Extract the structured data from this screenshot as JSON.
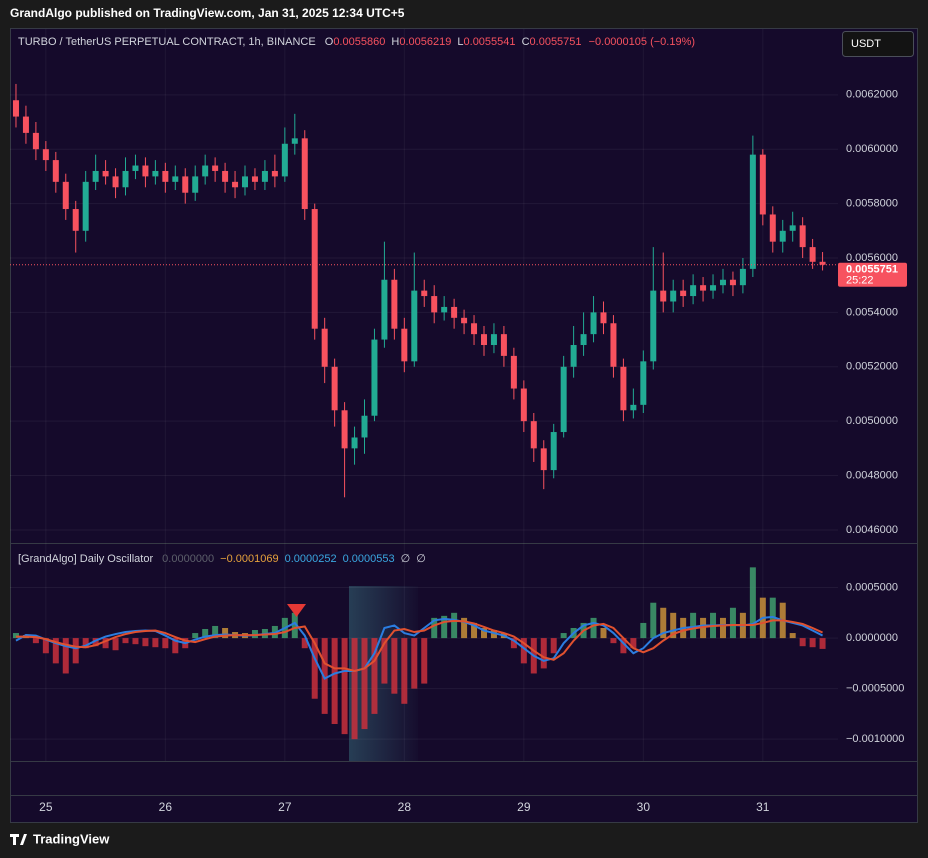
{
  "page": {
    "publisher_line": "GrandAlgo published on TradingView.com, Jan 31, 2025 12:34 UTC+5",
    "currency_button": "USDT",
    "brand": "TradingView"
  },
  "chart_data": [
    {
      "type": "candlestick",
      "title": "TURBO / TetherUS PERPETUAL CONTRACT, 1h, BINANCE",
      "ohlc_letters": [
        "O",
        "H",
        "L",
        "C"
      ],
      "ohlc_printed": [
        "0.0055860",
        "0.0056219",
        "0.0055541",
        "0.0055751"
      ],
      "change": "−0.0000105 (−0.19%)",
      "last_price_label": "0.0055751",
      "countdown": "25:22",
      "up_color": "#22ab94",
      "down_color": "#f7525f",
      "grid": true,
      "xlim": [
        -7.2,
        159.1
      ],
      "xticks": [
        {
          "value": 0,
          "label": "25"
        },
        {
          "value": 24,
          "label": "26"
        },
        {
          "value": 48,
          "label": "27"
        },
        {
          "value": 72,
          "label": "28"
        },
        {
          "value": 96,
          "label": "29"
        },
        {
          "value": 120,
          "label": "30"
        },
        {
          "value": 144,
          "label": "31"
        }
      ],
      "ylim": [
        0.004552,
        0.006442
      ],
      "yticks": [
        {
          "value": 0.0046,
          "label": "0.0046000"
        },
        {
          "value": 0.0048,
          "label": "0.0048000"
        },
        {
          "value": 0.005,
          "label": "0.0050000"
        },
        {
          "value": 0.0052,
          "label": "0.0052000"
        },
        {
          "value": 0.0054,
          "label": "0.0054000"
        },
        {
          "value": 0.0056,
          "label": "0.0056000"
        },
        {
          "value": 0.0058,
          "label": "0.0058000"
        },
        {
          "value": 0.006,
          "label": "0.0060000"
        },
        {
          "value": 0.0062,
          "label": "0.0062000"
        }
      ],
      "x": [
        -6,
        -4,
        -2,
        0,
        2,
        4,
        6,
        8,
        10,
        12,
        14,
        16,
        18,
        20,
        22,
        24,
        26,
        28,
        30,
        32,
        34,
        36,
        38,
        40,
        42,
        44,
        46,
        48,
        50,
        52,
        54,
        56,
        58,
        60,
        62,
        64,
        66,
        68,
        70,
        72,
        74,
        76,
        78,
        80,
        82,
        84,
        86,
        88,
        90,
        92,
        94,
        96,
        98,
        100,
        102,
        104,
        106,
        108,
        110,
        112,
        114,
        116,
        118,
        120,
        122,
        124,
        126,
        128,
        130,
        132,
        134,
        136,
        138,
        140,
        142,
        144,
        146,
        148,
        150,
        152,
        154,
        156
      ],
      "open": [
        0.00618,
        0.00612,
        0.00606,
        0.006,
        0.00596,
        0.00588,
        0.00578,
        0.0057,
        0.00588,
        0.00592,
        0.0059,
        0.00586,
        0.00592,
        0.00594,
        0.0059,
        0.00592,
        0.00588,
        0.0059,
        0.00584,
        0.0059,
        0.00594,
        0.00592,
        0.00588,
        0.00586,
        0.0059,
        0.00588,
        0.00592,
        0.0059,
        0.00602,
        0.00604,
        0.00578,
        0.00534,
        0.0052,
        0.00504,
        0.0049,
        0.00494,
        0.00502,
        0.0053,
        0.00552,
        0.00534,
        0.00522,
        0.00548,
        0.00546,
        0.0054,
        0.00542,
        0.00538,
        0.00536,
        0.00532,
        0.00528,
        0.00532,
        0.00524,
        0.00512,
        0.005,
        0.0049,
        0.00482,
        0.00496,
        0.0052,
        0.00528,
        0.00532,
        0.0054,
        0.00536,
        0.0052,
        0.00504,
        0.00506,
        0.00522,
        0.00548,
        0.00544,
        0.00548,
        0.00546,
        0.0055,
        0.00548,
        0.0055,
        0.00552,
        0.0055,
        0.00556,
        0.00598,
        0.00576,
        0.00566,
        0.0057,
        0.00572,
        0.00564,
        0.005586
      ],
      "high": [
        0.00624,
        0.00616,
        0.0061,
        0.00603,
        0.00599,
        0.00591,
        0.00581,
        0.00592,
        0.00598,
        0.00596,
        0.00593,
        0.00597,
        0.00598,
        0.00597,
        0.00596,
        0.00595,
        0.00594,
        0.00593,
        0.00594,
        0.00598,
        0.00597,
        0.00595,
        0.00592,
        0.00594,
        0.00593,
        0.00596,
        0.00598,
        0.00608,
        0.00613,
        0.00607,
        0.0058,
        0.00538,
        0.00523,
        0.00507,
        0.00498,
        0.00508,
        0.00534,
        0.00566,
        0.00556,
        0.00538,
        0.00562,
        0.00552,
        0.0055,
        0.00546,
        0.00545,
        0.00541,
        0.00539,
        0.00535,
        0.00536,
        0.00535,
        0.00527,
        0.00515,
        0.00503,
        0.00493,
        0.00499,
        0.00524,
        0.00535,
        0.0054,
        0.00546,
        0.00544,
        0.00539,
        0.00523,
        0.00512,
        0.00526,
        0.00564,
        0.00562,
        0.00552,
        0.00552,
        0.00554,
        0.00553,
        0.00554,
        0.00556,
        0.00555,
        0.0056,
        0.00605,
        0.006,
        0.00579,
        0.00574,
        0.00577,
        0.00575,
        0.00567,
        0.0056219
      ],
      "low": [
        0.00608,
        0.00602,
        0.00596,
        0.00592,
        0.00584,
        0.00574,
        0.00562,
        0.00566,
        0.00585,
        0.00587,
        0.00582,
        0.00583,
        0.00589,
        0.00586,
        0.00587,
        0.00584,
        0.00585,
        0.0058,
        0.00581,
        0.00587,
        0.00588,
        0.00584,
        0.00582,
        0.00583,
        0.00585,
        0.00585,
        0.00586,
        0.00588,
        0.00598,
        0.00574,
        0.0053,
        0.00514,
        0.00498,
        0.00472,
        0.00484,
        0.00488,
        0.005,
        0.00527,
        0.0053,
        0.00518,
        0.0052,
        0.00542,
        0.00536,
        0.00537,
        0.00534,
        0.00532,
        0.00528,
        0.00524,
        0.00525,
        0.0052,
        0.00508,
        0.00496,
        0.00485,
        0.00475,
        0.00479,
        0.00494,
        0.00516,
        0.00524,
        0.00529,
        0.00532,
        0.00516,
        0.005,
        0.00501,
        0.00503,
        0.00519,
        0.0054,
        0.0054,
        0.00542,
        0.00543,
        0.00544,
        0.00545,
        0.00547,
        0.00546,
        0.00547,
        0.00553,
        0.00572,
        0.00562,
        0.00562,
        0.00566,
        0.0056,
        0.00556,
        0.0055541
      ],
      "close": [
        0.00612,
        0.00606,
        0.006,
        0.00596,
        0.00588,
        0.00578,
        0.0057,
        0.00588,
        0.00592,
        0.0059,
        0.00586,
        0.00592,
        0.00594,
        0.0059,
        0.00592,
        0.00588,
        0.0059,
        0.00584,
        0.0059,
        0.00594,
        0.00592,
        0.00588,
        0.00586,
        0.0059,
        0.00588,
        0.00592,
        0.0059,
        0.00602,
        0.00604,
        0.00578,
        0.00534,
        0.0052,
        0.00504,
        0.0049,
        0.00494,
        0.00502,
        0.0053,
        0.00552,
        0.00534,
        0.00522,
        0.00548,
        0.00546,
        0.0054,
        0.00542,
        0.00538,
        0.00536,
        0.00532,
        0.00528,
        0.00532,
        0.00524,
        0.00512,
        0.005,
        0.0049,
        0.00482,
        0.00496,
        0.0052,
        0.00528,
        0.00532,
        0.0054,
        0.00536,
        0.0052,
        0.00504,
        0.00506,
        0.00522,
        0.00548,
        0.00544,
        0.00548,
        0.00546,
        0.0055,
        0.00548,
        0.0055,
        0.00552,
        0.0055,
        0.00556,
        0.00598,
        0.00576,
        0.00566,
        0.0057,
        0.00572,
        0.00564,
        0.005586,
        0.0055751
      ]
    },
    {
      "type": "oscillator",
      "title": "[GrandAlgo] Daily Oscillator",
      "legend_values": [
        {
          "text": "0.0000000",
          "color": "#5d606b"
        },
        {
          "text": "−0.0001069",
          "color": "#e6a23c"
        },
        {
          "text": "0.0000252",
          "color": "#3aa7e0"
        },
        {
          "text": "0.0000553",
          "color": "#3aa7e0"
        },
        {
          "text": "∅",
          "color": "#d1d4dc"
        },
        {
          "text": "∅",
          "color": "#d1d4dc"
        }
      ],
      "ylim": [
        -0.001216,
        0.000931
      ],
      "yticks": [
        {
          "value": -0.001,
          "label": "−0.0010000"
        },
        {
          "value": -0.0005,
          "label": "−0.0005000"
        },
        {
          "value": 0,
          "label": "0.0000000"
        },
        {
          "value": 0.0005,
          "label": "0.0005000"
        }
      ],
      "histogram_colors": {
        "pos_rising": "#3f9f6f",
        "pos_falling": "#c8913a",
        "neg": "#c9303c"
      },
      "histogram": [
        5e-05,
        3e-05,
        -5e-05,
        -0.00015,
        -0.00025,
        -0.00035,
        -0.00025,
        -0.0001,
        -8e-05,
        -0.0001,
        -0.00012,
        -5e-05,
        -6e-05,
        -8e-05,
        -9e-05,
        -0.0001,
        -0.00015,
        -0.0001,
        5e-05,
        9e-05,
        0.00012,
        0.0001,
        6e-05,
        5e-05,
        8e-05,
        9e-05,
        0.00012,
        0.0002,
        0.00025,
        -0.0001,
        -0.0006,
        -0.00075,
        -0.00085,
        -0.00095,
        -0.001,
        -0.0009,
        -0.00075,
        -0.00045,
        -0.00055,
        -0.00065,
        -0.0005,
        -0.00045,
        0.0002,
        0.00022,
        0.00025,
        0.0002,
        0.00015,
        0.0001,
        8e-05,
        5e-05,
        -0.0001,
        -0.00025,
        -0.00035,
        -0.0003,
        -0.00015,
        5e-05,
        0.0001,
        0.00015,
        0.0002,
        0.0001,
        -5e-05,
        -0.00015,
        -0.0001,
        0.00015,
        0.00035,
        0.0003,
        0.00025,
        0.0002,
        0.00025,
        0.0002,
        0.00025,
        0.0002,
        0.0003,
        0.00025,
        0.0007,
        0.0004,
        0.0004,
        0.00035,
        5e-05,
        -8e-05,
        -9e-05,
        -0.0001069
      ],
      "series": [
        {
          "color": "#2b7de0",
          "values": [
            -2.5e-05,
            3e-05,
            2.5e-05,
            -1.5e-05,
            -5e-05,
            -8e-05,
            -0.0001,
            -7.5e-05,
            -2.5e-05,
            1.5e-05,
            4e-05,
            6e-05,
            7e-05,
            7.5e-05,
            7e-05,
            2.5e-05,
            -2.5e-05,
            -5e-05,
            -1.5e-05,
            1.5e-05,
            3e-05,
            3.5e-05,
            3e-05,
            2.5e-05,
            3e-05,
            4e-05,
            5e-05,
            0.0001,
            0.00015,
            2.5e-05,
            -0.0002,
            -0.0004,
            -0.00035,
            -0.000325,
            -0.000325,
            -0.0003,
            -0.00015,
            0.0001,
            0.000125,
            5e-05,
            2.5e-05,
            0.0001,
            0.000175,
            0.00019,
            0.00018,
            0.00016,
            0.000125,
            7.5e-05,
            5e-05,
            2.5e-05,
            -2.5e-05,
            -0.0001,
            -0.000175,
            -0.000225,
            -0.0002,
            -5e-05,
            5e-05,
            0.000125,
            0.00015,
            0.000125,
            5e-05,
            -5e-05,
            -0.00015,
            -0.0001,
            0,
            5e-05,
            7.5e-05,
            0.0001,
            0.00011,
            0.000125,
            0.000125,
            0.00013,
            0.00013,
            0.000125,
            0.00014,
            0.0002,
            0.00021,
            0.000175,
            0.00015,
            0.000125,
            7.5e-05,
            2.52e-05
          ]
        },
        {
          "color": "#e0512f",
          "values": [
            1.5e-05,
            1.5e-05,
            1e-05,
            -1e-05,
            -4e-05,
            -6.5e-05,
            -8.5e-05,
            -9e-05,
            -7e-05,
            -3e-05,
            1e-05,
            4e-05,
            6e-05,
            7e-05,
            7.5e-05,
            5e-05,
            1e-05,
            -2.5e-05,
            -4e-05,
            -1e-05,
            1.5e-05,
            2.5e-05,
            3e-05,
            3e-05,
            3e-05,
            3.5e-05,
            4e-05,
            6e-05,
            0.0001,
            0.000115,
            -5e-05,
            -0.00025,
            -0.0003,
            -0.0003,
            -0.000325,
            -0.0003,
            -0.000225,
            -5e-05,
            7.5e-05,
            9e-05,
            6e-05,
            7.5e-05,
            0.000125,
            0.00016,
            0.00017,
            0.000165,
            0.000145,
            0.00011,
            7.5e-05,
            5e-05,
            1.5e-05,
            -5e-05,
            -0.000125,
            -0.00019,
            -0.000215,
            -0.00015,
            -2.5e-05,
            7.5e-05,
            0.000125,
            0.00014,
            0.0001,
            0,
            -0.0001,
            -0.00014,
            -0.0001,
            -2.5e-05,
            4e-05,
            7.5e-05,
            9.5e-05,
            0.00011,
            0.00012,
            0.000125,
            0.00013,
            0.00013,
            0.00013,
            0.00015,
            0.000175,
            0.000175,
            0.00016,
            0.00014,
            0.0001,
            5.53e-05
          ]
        }
      ]
    }
  ]
}
